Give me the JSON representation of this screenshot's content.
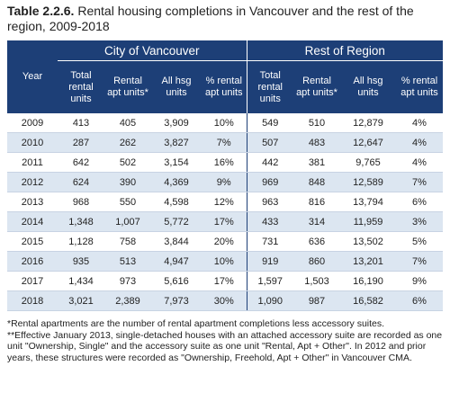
{
  "title": {
    "label": "Table 2.2.6.",
    "text": "Rental housing completions in Vancouver and the rest of the region, 2009-2018"
  },
  "table": {
    "groups": [
      "City of Vancouver",
      "Rest of Region"
    ],
    "columns": [
      "Year",
      "Total rental units",
      "Rental apt units*",
      "All hsg units",
      "% rental apt units",
      "Total rental units",
      "Rental apt units*",
      "All hsg units",
      "% rental apt units"
    ],
    "rows": [
      [
        "2009",
        "413",
        "405",
        "3,909",
        "10%",
        "549",
        "510",
        "12,879",
        "4%"
      ],
      [
        "2010",
        "287",
        "262",
        "3,827",
        "7%",
        "507",
        "483",
        "12,647",
        "4%"
      ],
      [
        "2011",
        "642",
        "502",
        "3,154",
        "16%",
        "442",
        "381",
        "9,765",
        "4%"
      ],
      [
        "2012",
        "624",
        "390",
        "4,369",
        "9%",
        "969",
        "848",
        "12,589",
        "7%"
      ],
      [
        "2013",
        "968",
        "550",
        "4,598",
        "12%",
        "963",
        "816",
        "13,794",
        "6%"
      ],
      [
        "2014",
        "1,348",
        "1,007",
        "5,772",
        "17%",
        "433",
        "314",
        "11,959",
        "3%"
      ],
      [
        "2015",
        "1,128",
        "758",
        "3,844",
        "20%",
        "731",
        "636",
        "13,502",
        "5%"
      ],
      [
        "2016",
        "935",
        "513",
        "4,947",
        "10%",
        "919",
        "860",
        "13,201",
        "7%"
      ],
      [
        "2017",
        "1,434",
        "973",
        "5,616",
        "17%",
        "1,597",
        "1,503",
        "16,190",
        "9%"
      ],
      [
        "2018",
        "3,021",
        "2,389",
        "7,973",
        "30%",
        "1,090",
        "987",
        "16,582",
        "6%"
      ]
    ]
  },
  "footnotes": [
    "*Rental apartments are the number of rental apartment completions less accessory suites.",
    "**Effective January 2013, single-detached houses with an attached accessory suite are recorded as one unit \"Ownership, Single\" and the accessory suite as one unit \"Rental, Apt + Other\". In 2012 and prior years, these structures were recorded as \"Ownership, Freehold, Apt + Other\" in Vancouver CMA."
  ]
}
